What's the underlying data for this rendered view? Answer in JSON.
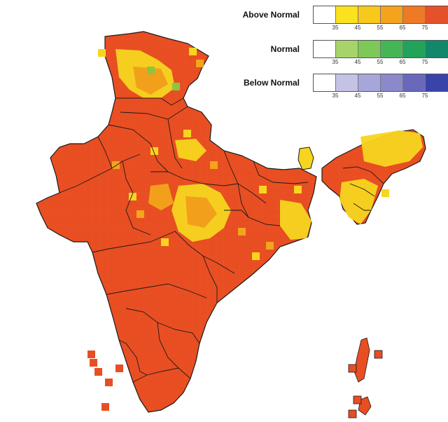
{
  "legend": [
    {
      "title": "Above Normal",
      "swatches": [
        "#ffffff",
        "#fae21f",
        "#f8c81a",
        "#f5a21c",
        "#ef7a25",
        "#e4512a"
      ],
      "ticks": [
        "35",
        "45",
        "55",
        "65",
        "75"
      ]
    },
    {
      "title": "Normal",
      "swatches": [
        "#ffffff",
        "#a6d46a",
        "#7dc856",
        "#45b656",
        "#21a35a",
        "#12876a"
      ],
      "ticks": [
        "35",
        "45",
        "55",
        "65",
        "75"
      ]
    },
    {
      "title": "Below Normal",
      "swatches": [
        "#ffffff",
        "#c4c3e6",
        "#a7a6da",
        "#8b89cc",
        "#6a68bb",
        "#3a44a8"
      ],
      "ticks": [
        "35",
        "45",
        "55",
        "65",
        "75"
      ]
    }
  ],
  "colors": {
    "dominant_fill": "#e84e22",
    "high_fill": "#ee6a20",
    "moderate_fill": "#f3a51c",
    "low_fill": "#f7d51f",
    "normal_fill": "#8cc63f",
    "boundary": "#1a1a1a"
  }
}
